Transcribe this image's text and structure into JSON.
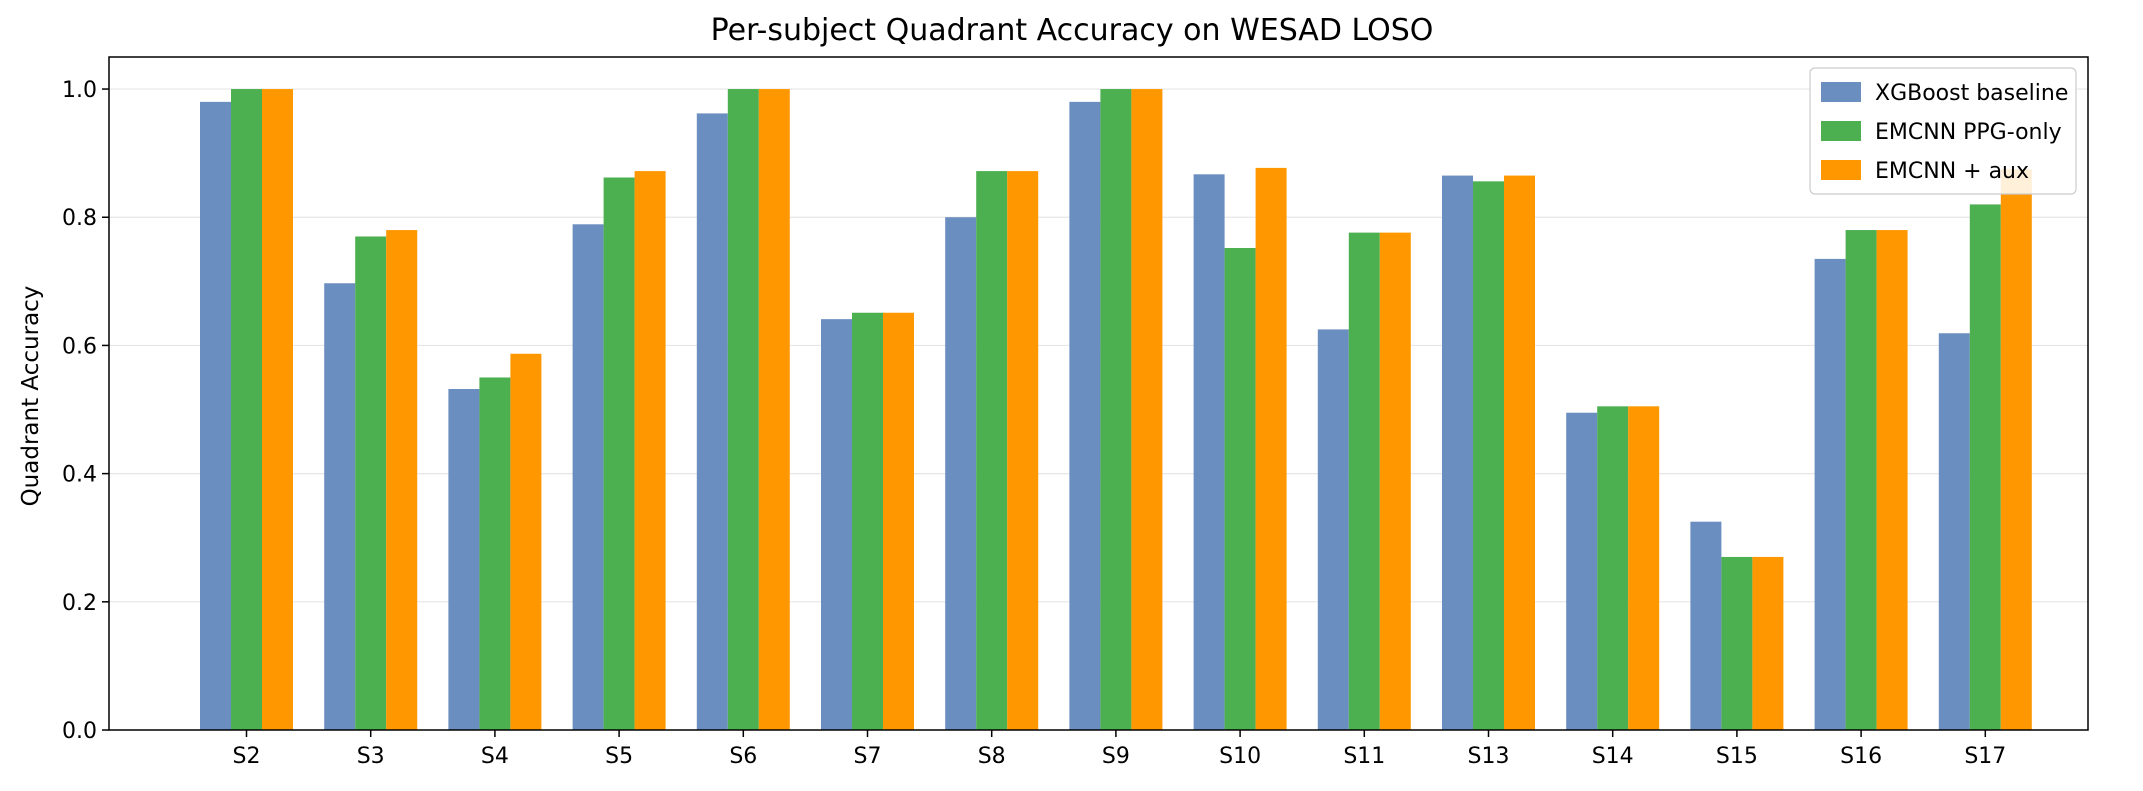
{
  "chart_data": {
    "type": "bar",
    "title": "Per-subject Quadrant Accuracy on WESAD LOSO",
    "xlabel": "",
    "ylabel": "Quadrant Accuracy",
    "ylim": [
      0,
      1.05
    ],
    "yticks": [
      "0.0",
      "0.2",
      "0.4",
      "0.6",
      "0.8",
      "1.0"
    ],
    "grid": "horizontal",
    "legend_position": "top-right",
    "categories": [
      "S2",
      "S3",
      "S4",
      "S5",
      "S6",
      "S7",
      "S8",
      "S9",
      "S10",
      "S11",
      "S13",
      "S14",
      "S15",
      "S16",
      "S17"
    ],
    "series": [
      {
        "name": "XGBoost baseline",
        "color": "#6a8ebf",
        "values": [
          0.98,
          0.697,
          0.532,
          0.789,
          0.962,
          0.641,
          0.8,
          0.98,
          0.867,
          0.625,
          0.865,
          0.495,
          0.325,
          0.735,
          0.619
        ]
      },
      {
        "name": "EMCNN PPG-only",
        "color": "#4caf50",
        "values": [
          1.0,
          0.77,
          0.55,
          0.862,
          1.0,
          0.651,
          0.872,
          1.0,
          0.752,
          0.776,
          0.856,
          0.505,
          0.27,
          0.78,
          0.82
        ]
      },
      {
        "name": "EMCNN + aux",
        "color": "#ff9800",
        "values": [
          1.0,
          0.78,
          0.587,
          0.872,
          1.0,
          0.651,
          0.872,
          1.0,
          0.877,
          0.776,
          0.865,
          0.505,
          0.27,
          0.78,
          0.875
        ]
      }
    ]
  }
}
